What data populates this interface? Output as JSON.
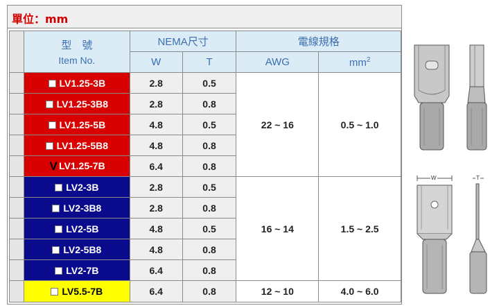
{
  "unit_label": "單位：mm",
  "headers": {
    "item_cn": "型　號",
    "item_en": "Item No.",
    "nema": "NEMA尺寸",
    "w": "W",
    "t": "T",
    "wire": "電線規格",
    "awg": "AWG",
    "mm2": "mm",
    "mm2_sup": "2"
  },
  "rows": [
    {
      "item": "LV1.25-3B",
      "w": "2.8",
      "t": "0.5",
      "color": "red",
      "checked": false
    },
    {
      "item": "LV1.25-3B8",
      "w": "2.8",
      "t": "0.8",
      "color": "red",
      "checked": false
    },
    {
      "item": "LV1.25-5B",
      "w": "4.8",
      "t": "0.5",
      "color": "red",
      "checked": false
    },
    {
      "item": "LV1.25-5B8",
      "w": "4.8",
      "t": "0.8",
      "color": "red",
      "checked": false
    },
    {
      "item": "LV1.25-7B",
      "w": "6.4",
      "t": "0.8",
      "color": "red",
      "checked": true
    },
    {
      "item": "LV2-3B",
      "w": "2.8",
      "t": "0.5",
      "color": "blue",
      "checked": false
    },
    {
      "item": "LV2-3B8",
      "w": "2.8",
      "t": "0.8",
      "color": "blue",
      "checked": false
    },
    {
      "item": "LV2-5B",
      "w": "4.8",
      "t": "0.5",
      "color": "blue",
      "checked": false
    },
    {
      "item": "LV2-5B8",
      "w": "4.8",
      "t": "0.8",
      "color": "blue",
      "checked": false
    },
    {
      "item": "LV2-7B",
      "w": "6.4",
      "t": "0.8",
      "color": "blue",
      "checked": false
    },
    {
      "item": "LV5.5-7B",
      "w": "6.4",
      "t": "0.8",
      "color": "yellow",
      "checked": false
    }
  ],
  "groups": [
    {
      "awg": "22 ~ 16",
      "mm2": "0.5 ~ 1.0"
    },
    {
      "awg": "16 ~ 14",
      "mm2": "1.5 ~ 2.5"
    },
    {
      "awg": "12 ~ 10",
      "mm2": "4.0 ~ 6.0"
    }
  ],
  "check_glyph": "V",
  "drawing_labels": {
    "w": "W",
    "t": "T"
  },
  "colors": {
    "red": "#d80000",
    "blue": "#0a0a8c",
    "yellow": "#ffff00",
    "header_text": "#3a6fb0",
    "unit_text": "#d40000"
  }
}
